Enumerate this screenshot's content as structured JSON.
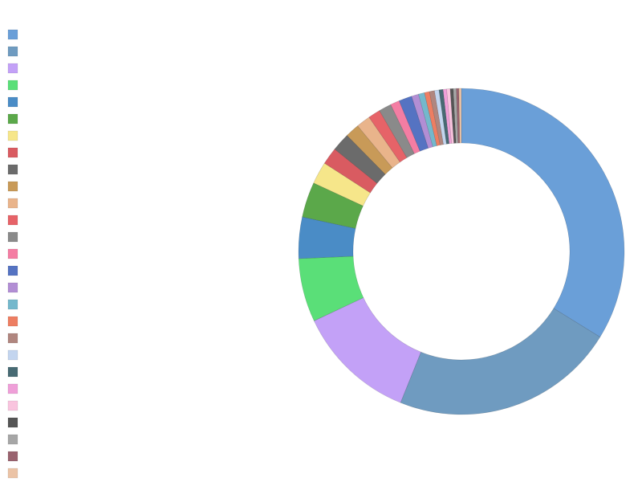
{
  "chart_data": {
    "type": "pie",
    "categories": [
      null,
      null,
      null,
      null,
      null,
      null,
      null,
      null,
      null,
      null,
      null,
      null,
      null,
      null,
      null,
      null,
      null,
      null,
      null,
      null,
      null,
      null,
      null,
      null,
      null,
      null,
      null
    ],
    "values": [
      33.8,
      22.3,
      11.9,
      6.3,
      4.1,
      3.5,
      2.2,
      1.7,
      1.8,
      1.4,
      1.4,
      1.2,
      1.25,
      0.9,
      1.3,
      0.7,
      0.6,
      0.5,
      0.5,
      0.45,
      0.4,
      0.35,
      0.35,
      0.3,
      0.3,
      0.25,
      0.25
    ],
    "colors": [
      "#6a9fd8",
      "#6f9bc0",
      "#c3a1f7",
      "#5adf78",
      "#4a8cc6",
      "#5ba84a",
      "#f6e68a",
      "#d95b61",
      "#6b6b6b",
      "#c89a58",
      "#e9b48b",
      "#e66368",
      "#8a8a8a",
      "#f47da3",
      "#5573c2",
      "#b28ed4",
      "#74b8cc",
      "#ed7e62",
      "#b0867f",
      "#c3d5ef",
      "#476a73",
      "#ef9fd8",
      "#f9c4de",
      "#555555",
      "#a6a6a6",
      "#99636f",
      "#ebc3a6"
    ]
  }
}
